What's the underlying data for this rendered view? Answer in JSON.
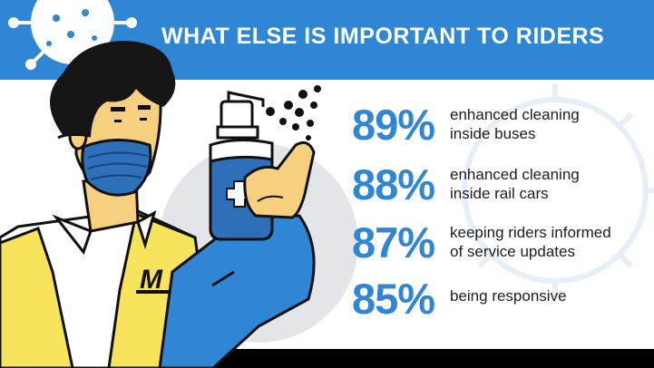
{
  "header": {
    "title": "WHAT ELSE IS IMPORTANT TO RIDERS"
  },
  "stats": [
    {
      "percent": "89%",
      "line1": "enhanced cleaning",
      "line2": "inside buses"
    },
    {
      "percent": "88%",
      "line1": "enhanced cleaning",
      "line2": "inside rail cars"
    },
    {
      "percent": "87%",
      "line1": "keeping riders informed",
      "line2": "of service updates"
    },
    {
      "percent": "85%",
      "line1": "being responsive",
      "line2": ""
    }
  ],
  "illustration": {
    "badge_letter": "M",
    "icons": [
      "virus-icon",
      "sanitizer-bottle-icon",
      "face-mask-icon",
      "spray-mist-icon"
    ]
  },
  "colors": {
    "brand_blue": "#2f86d4",
    "vest_yellow": "#f8e45c",
    "skin": "#f6cf7f",
    "mask_blue": "#2d6fb8",
    "footer": "#000000"
  }
}
